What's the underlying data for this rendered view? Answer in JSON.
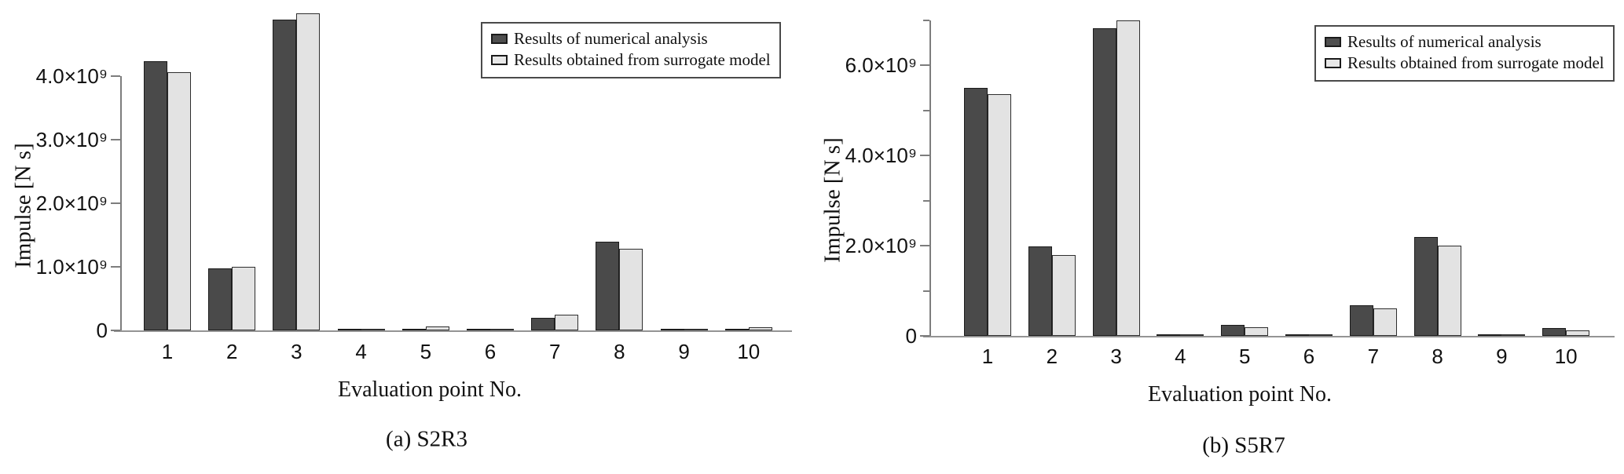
{
  "figure": {
    "background": "#ffffff",
    "axis_color": "#7d7d7d",
    "text_color": "#111111"
  },
  "chart_data": [
    {
      "type": "bar",
      "caption": "(a) S2R3",
      "xlabel": "Evaluation point No.",
      "ylabel": "Impulse [N s]",
      "categories": [
        "1",
        "2",
        "3",
        "4",
        "5",
        "6",
        "7",
        "8",
        "9",
        "10"
      ],
      "series": [
        {
          "name": "Results of numerical analysis",
          "color": "#4a4a4a",
          "values": [
            4230000000.0,
            970000000.0,
            4890000000.0,
            20000000.0,
            30000000.0,
            20000000.0,
            200000000.0,
            1400000000.0,
            20000000.0,
            30000000.0
          ]
        },
        {
          "name": "Results obtained from surrogate model",
          "color": "#e3e3e3",
          "values": [
            4060000000.0,
            1000000000.0,
            4990000000.0,
            10000000.0,
            60000000.0,
            10000000.0,
            250000000.0,
            1280000000.0,
            10000000.0,
            50000000.0
          ]
        }
      ],
      "ylim": [
        0,
        4000000000.0
      ],
      "yticks": [
        {
          "value": 0,
          "label": "0"
        },
        {
          "value": 1000000000.0,
          "label": "1.0×10⁹"
        },
        {
          "value": 2000000000.0,
          "label": "2.0×10⁹"
        },
        {
          "value": 3000000000.0,
          "label": "3.0×10⁹"
        },
        {
          "value": 4000000000.0,
          "label": "4.0×10⁹"
        }
      ],
      "minor_yticks": [],
      "grid": false,
      "legend_position": "top-right"
    },
    {
      "type": "bar",
      "caption": "(b) S5R7",
      "xlabel": "Evaluation point No.",
      "ylabel": "Impulse [N s]",
      "categories": [
        "1",
        "2",
        "3",
        "4",
        "5",
        "6",
        "7",
        "8",
        "9",
        "10"
      ],
      "series": [
        {
          "name": "Results of numerical analysis",
          "color": "#4a4a4a",
          "values": [
            5500000000.0,
            1980000000.0,
            6820000000.0,
            20000000.0,
            240000000.0,
            20000000.0,
            680000000.0,
            2190000000.0,
            20000000.0,
            180000000.0
          ]
        },
        {
          "name": "Results obtained from surrogate model",
          "color": "#e3e3e3",
          "values": [
            5360000000.0,
            1790000000.0,
            7000000000.0,
            10000000.0,
            200000000.0,
            10000000.0,
            610000000.0,
            2000000000.0,
            10000000.0,
            120000000.0
          ]
        }
      ],
      "ylim": [
        0,
        7000000000.0
      ],
      "yticks": [
        {
          "value": 0,
          "label": "0"
        },
        {
          "value": 2000000000.0,
          "label": "2.0×10⁹"
        },
        {
          "value": 4000000000.0,
          "label": "4.0×10⁹"
        },
        {
          "value": 6000000000.0,
          "label": "6.0×10⁹"
        }
      ],
      "minor_yticks": [
        1000000000.0,
        3000000000.0,
        5000000000.0,
        7000000000.0
      ],
      "grid": false,
      "legend_position": "top-right"
    }
  ]
}
